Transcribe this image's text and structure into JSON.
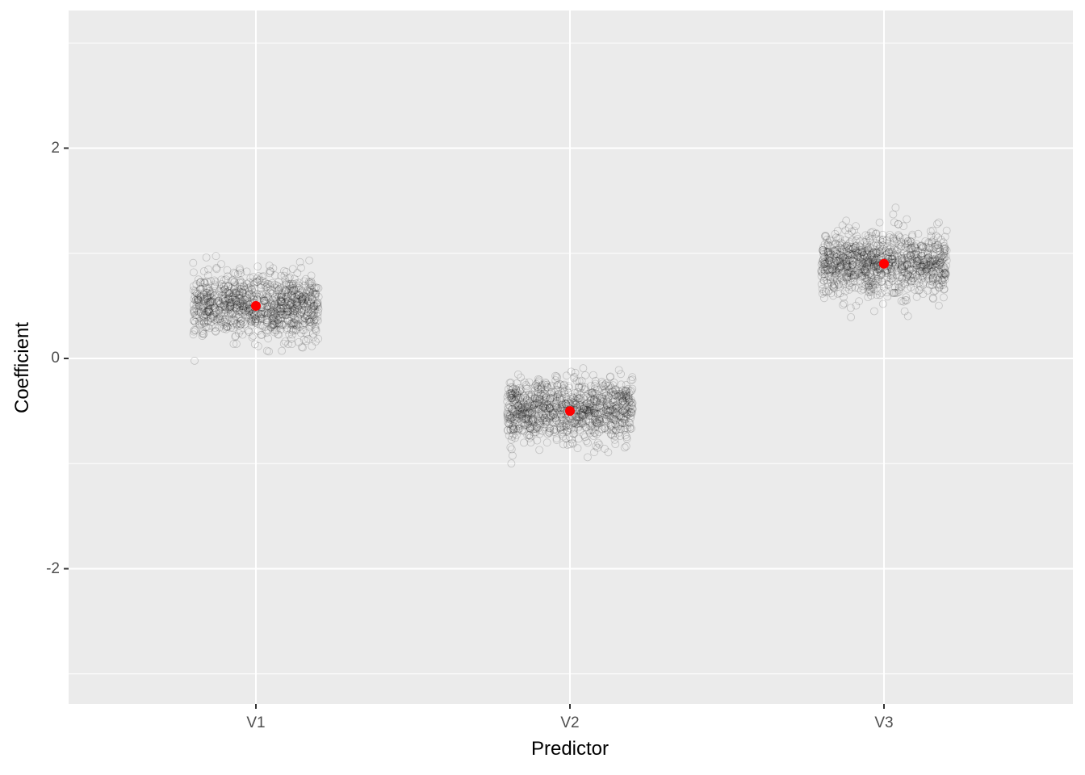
{
  "chart_data": {
    "type": "scatter",
    "title": "",
    "xlabel": "Predictor",
    "ylabel": "Coefficient",
    "categories": [
      "V1",
      "V2",
      "V3"
    ],
    "y_ticks": [
      -2,
      0,
      2
    ],
    "y_tick_labels": [
      "-2",
      "0",
      "2"
    ],
    "ylim": [
      -3.3,
      3.3
    ],
    "grid": true,
    "series": [
      {
        "name": "jittered coefficient samples",
        "style": "hollow gray circles, jittered",
        "centers": [
          0.5,
          -0.5,
          0.9
        ],
        "spread_sd": [
          0.15,
          0.15,
          0.15
        ],
        "jitter_width": 0.2
      },
      {
        "name": "true coefficient",
        "style": "solid red points",
        "color": "#ff0000",
        "values": [
          0.5,
          -0.5,
          0.9
        ]
      }
    ],
    "colors": {
      "panel_bg": "#ebebeb",
      "grid": "#ffffff",
      "point_outline": "#000000",
      "highlight": "#ff0000"
    }
  }
}
